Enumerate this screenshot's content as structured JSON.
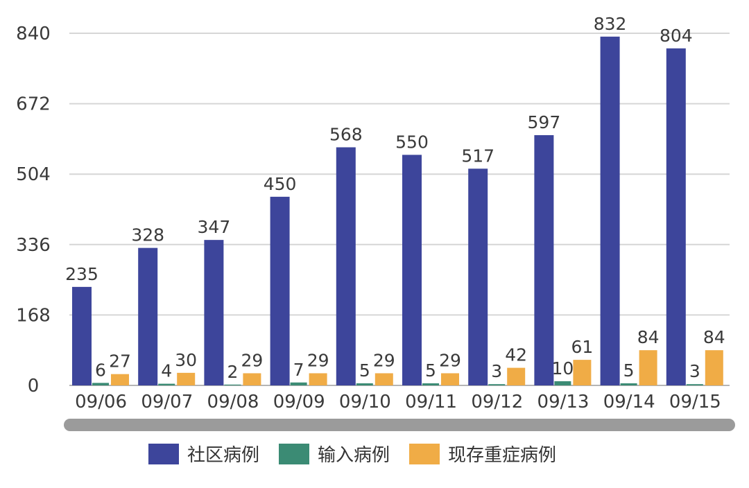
{
  "chart_data": {
    "type": "bar",
    "categories": [
      "09/06",
      "09/07",
      "09/08",
      "09/09",
      "09/10",
      "09/11",
      "09/12",
      "09/13",
      "09/14",
      "09/15"
    ],
    "series": [
      {
        "name": "社区病例",
        "color": "#3d459b",
        "values": [
          235,
          328,
          347,
          450,
          568,
          550,
          517,
          597,
          832,
          804
        ]
      },
      {
        "name": "输入病例",
        "color": "#3b8b74",
        "values": [
          6,
          4,
          2,
          7,
          5,
          5,
          3,
          10,
          5,
          3
        ]
      },
      {
        "name": "现存重症病例",
        "color": "#f0ac46",
        "values": [
          27,
          30,
          29,
          29,
          29,
          29,
          42,
          61,
          84,
          84
        ]
      }
    ],
    "y_ticks": [
      0,
      168,
      336,
      504,
      672,
      840
    ],
    "ylim": [
      0,
      840
    ],
    "grid": true,
    "legend_position": "bottom"
  }
}
